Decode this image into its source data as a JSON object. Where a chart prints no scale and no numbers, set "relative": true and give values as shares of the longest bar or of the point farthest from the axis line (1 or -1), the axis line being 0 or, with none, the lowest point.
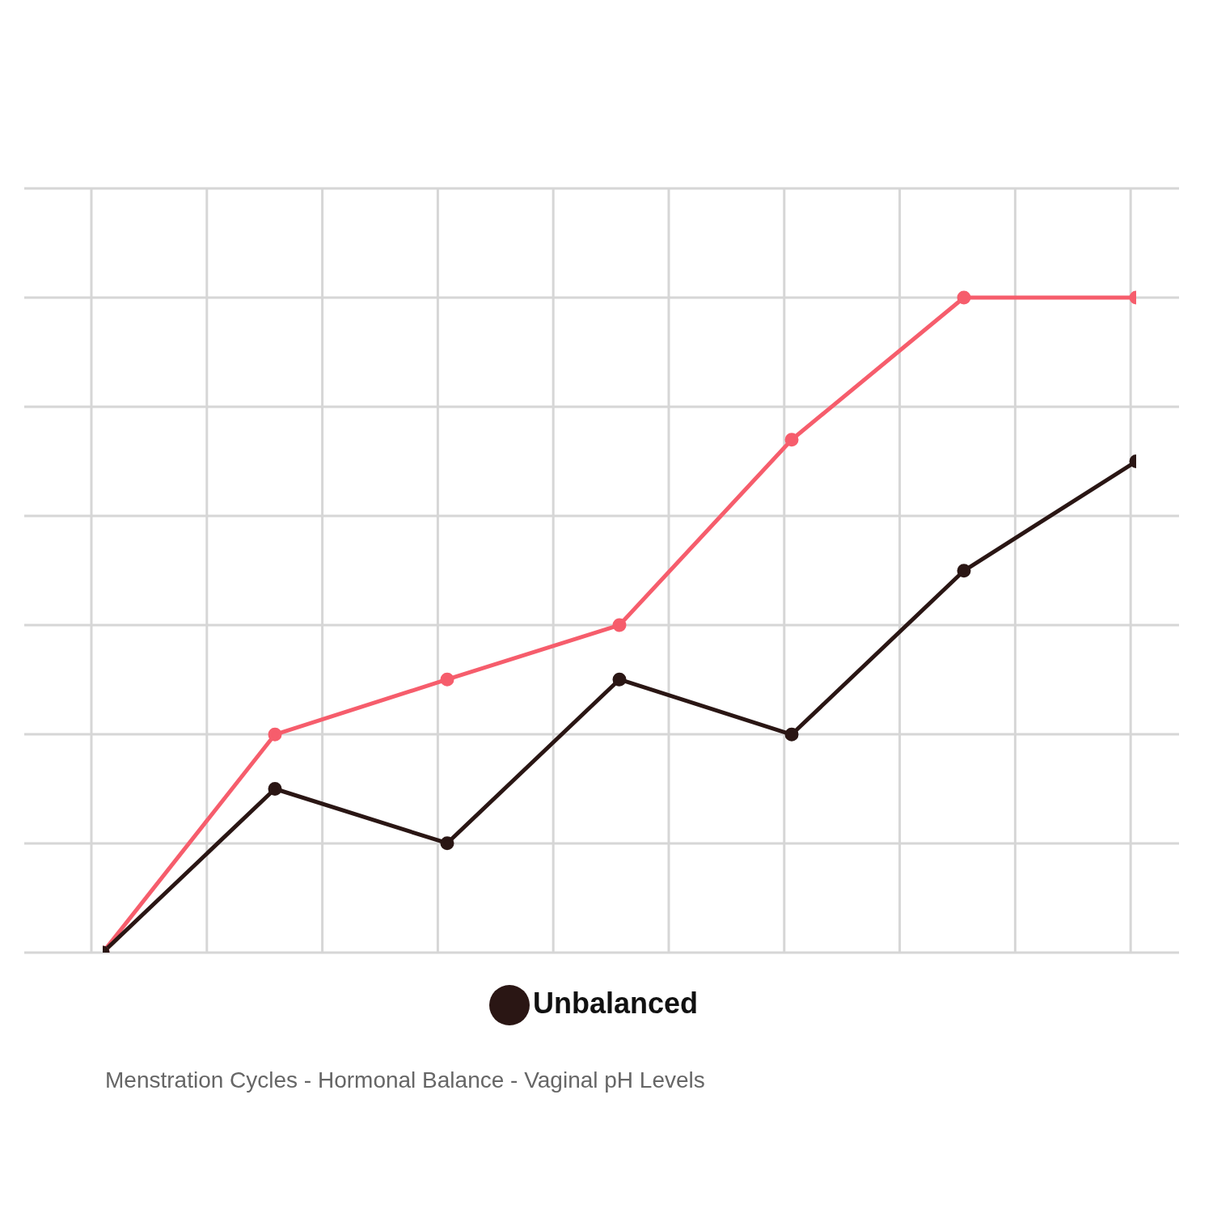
{
  "chart_data": {
    "type": "line",
    "relative": true,
    "annotations": [
      "Menstration Cycles - Hormonal Balance - Vaginal pH Levels"
    ],
    "categories": [
      null,
      null,
      null,
      null,
      null,
      null,
      null
    ],
    "series": [
      {
        "color": "#f65d6c",
        "values": [
          0,
          0.333,
          0.417,
          0.5,
          0.783,
          1,
          1
        ]
      },
      {
        "name": "Unbalanced",
        "color": "#2a1614",
        "values": [
          0,
          0.25,
          0.167,
          0.417,
          0.333,
          0.583,
          0.75
        ]
      }
    ],
    "grid": true,
    "legend": "bottom left",
    "marker": "circle",
    "line_style": "solid"
  }
}
